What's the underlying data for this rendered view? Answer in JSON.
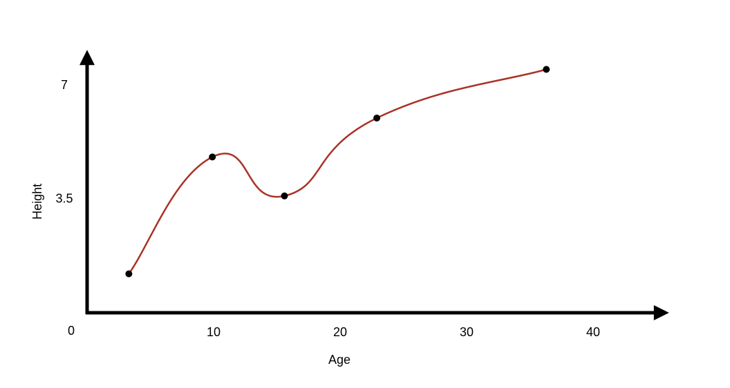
{
  "chart_data": {
    "type": "line",
    "x_label": "Age",
    "y_label": "Height",
    "x": [
      3.3,
      9.9,
      15.6,
      22.9,
      36.3
    ],
    "series": [
      {
        "color": "#a93226",
        "values": [
          1.2,
          4.8,
          3.6,
          6.0,
          7.5
        ]
      }
    ],
    "xlim": [
      0,
      46
    ],
    "ylim": [
      0,
      8.1
    ],
    "xticks": [
      0,
      10,
      20,
      30,
      40
    ],
    "yticks": [
      3.5,
      7
    ],
    "grid": false,
    "smooth": true
  }
}
